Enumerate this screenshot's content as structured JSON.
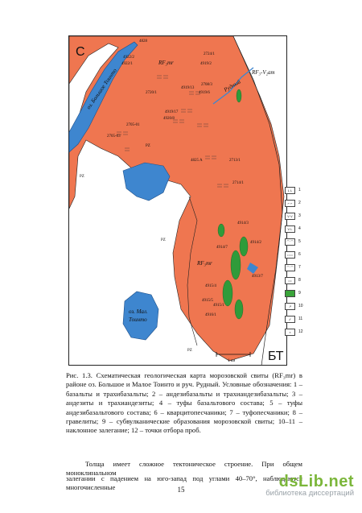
{
  "map": {
    "north_label": "С",
    "lake_big": "оз. Большое Тоинто",
    "lake_small_line1": "оз. Мал.",
    "lake_small_line2": "Тоинто",
    "stream": "Рудный",
    "unit_rf": "RF₃mr",
    "unit_rf_vam": "RF₃-V₂am",
    "unit_pz": "PZ",
    "corner": "БТ",
    "scale": "1 км",
    "samples": [
      "4828",
      "4922/2",
      "4922/1",
      "2724/1",
      "4919/2",
      "2708/3",
      "4919/6",
      "4919/13",
      "2720/1",
      "4919/17",
      "4920/8",
      "2705-01",
      "2705-03",
      "4825 A",
      "2713/1",
      "2714/1",
      "4914/3",
      "4914/2",
      "4914/7",
      "4913/7",
      "4915/4",
      "4915/5",
      "4915/1",
      "4916/1"
    ]
  },
  "legend": {
    "numbers": [
      "1",
      "2",
      "3",
      "4",
      "5",
      "6",
      "7",
      "8",
      "9",
      "10",
      "11",
      "12"
    ],
    "marks": [
      "L L",
      "⌐ ⌐",
      "V V",
      "V L",
      "⌒ ⌒",
      "• • •",
      "⌒ ⌒",
      "• •",
      "",
      "↗",
      "⁄⁄",
      "×"
    ],
    "fill_colors": [
      "#ffffff",
      "#ffffff",
      "#ffffff",
      "#ffffff",
      "#ffffff",
      "#ffffff",
      "#ffffff",
      "#ffffff",
      "#3aa43a",
      "#ffffff",
      "#ffffff",
      "#ffffff"
    ]
  },
  "caption": "Рис. 1.3. Схематическая геологическая карта морозовской свиты (RF₃mr) в районе оз. Большое и Малое Тоинто и руч. Рудный. Условные обозначения: 1 – базальты и трахибазальты; 2 – андезибазальты и трахиандезибазальты; 3 – андезиты и трахиандезиты; 4 – туфы базальтового состава; 5 – туфы андезибазальтового состава; 6 – кварцитопесчаники; 7 – туфопесчаники; 8 – гравелиты; 9 – субвулканические образования морозовской свиты; 10–11 – наклонное залегание; 12 – точки отбора проб.",
  "paragraph1": "Толща имеет сложное тектоническое строение. При общем моноклинальном",
  "paragraph2": "залегании с падением на юго-запад под углами 40–70°, наблюдаются многочисленные",
  "page_number": "15",
  "brand": {
    "name": "dsLib.net",
    "tagline": "библиотека диссертаций"
  },
  "colors": {
    "orange": "#ef7650",
    "lake": "#3e86cf",
    "green": "#2f9b3a",
    "pz": "#ffffff"
  }
}
